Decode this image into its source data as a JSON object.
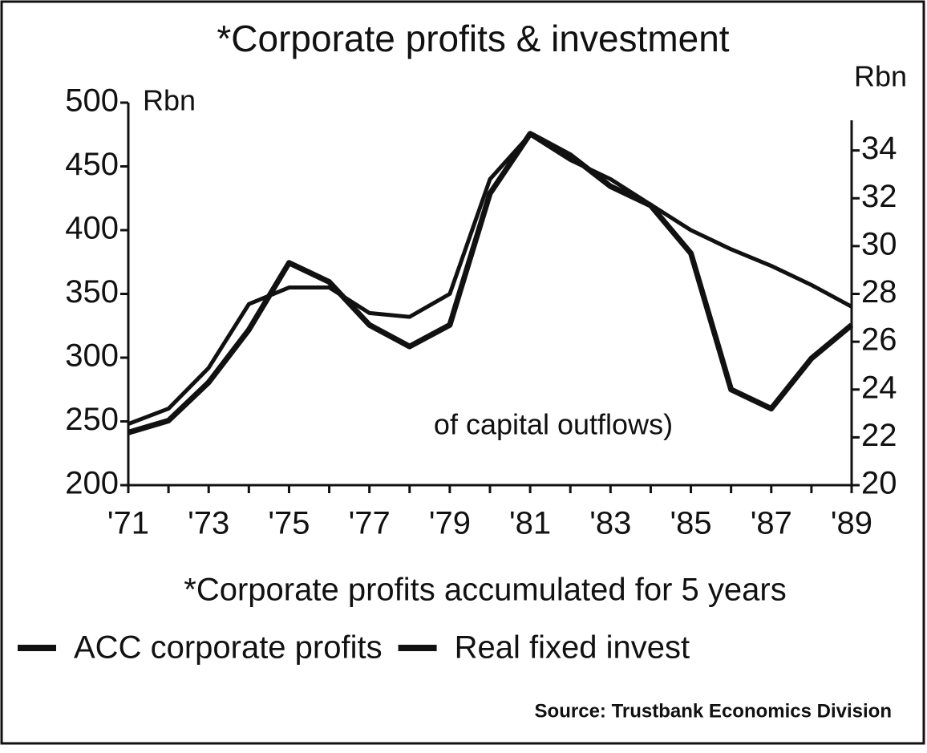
{
  "chart_data": {
    "type": "line",
    "title": "*Corporate profits & investment",
    "y_label": "Rbn",
    "y2_label": "Rbn",
    "categories": [
      "'71",
      null,
      "'73",
      null,
      "'75",
      null,
      "'77",
      null,
      "'79",
      null,
      "'81",
      null,
      "'83",
      null,
      "'85",
      null,
      "'87",
      null,
      "'89"
    ],
    "series": [
      {
        "name": "ACC corporate profits",
        "color": "#111",
        "values": [
          248,
          260,
          292,
          342,
          355,
          355,
          335,
          332,
          350,
          440,
          475,
          455,
          440,
          420,
          400,
          385,
          372,
          357,
          340
        ]
      },
      {
        "name": "Real fixed invest",
        "color": "#111",
        "axis": "y2",
        "values": [
          22.2,
          22.7,
          24.3,
          26.5,
          29.3,
          28.5,
          26.7,
          25.8,
          26.7,
          32.2,
          34.7,
          33.8,
          32.5,
          31.7,
          29.7,
          24,
          23.2,
          25.3,
          26.7
        ]
      }
    ],
    "ylim": [
      200,
      500
    ],
    "yticks": [
      200,
      250,
      300,
      350,
      400,
      450,
      500
    ],
    "y2lim": [
      20,
      36
    ],
    "y2ticks": [
      20,
      22,
      24,
      26,
      28,
      30,
      32,
      34
    ],
    "annotation": "of capital outflows)",
    "note": "*Corporate profits accumulated for 5 years",
    "source": "Source: Trustbank Economics Division"
  }
}
